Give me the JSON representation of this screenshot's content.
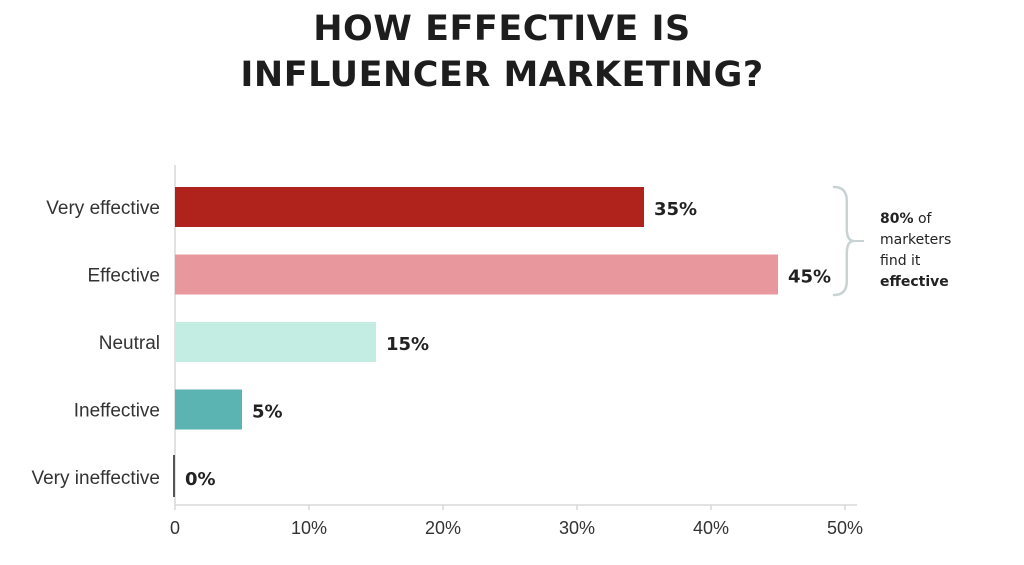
{
  "chart_data": {
    "type": "bar",
    "orientation": "horizontal",
    "title_lines": [
      "HOW EFFECTIVE IS",
      "INFLUENCER MARKETING?"
    ],
    "categories": [
      "Very effective",
      "Effective",
      "Neutral",
      "Ineffective",
      "Very ineffective"
    ],
    "values": [
      35,
      45,
      15,
      5,
      0
    ],
    "value_labels": [
      "35%",
      "45%",
      "15%",
      "5%",
      "0%"
    ],
    "colors": [
      "#b0221c",
      "#e8979c",
      "#c3ede3",
      "#5bb3b2",
      "#555555"
    ],
    "xlim": [
      0,
      50
    ],
    "xticks": [
      0,
      10,
      20,
      30,
      40,
      50
    ],
    "xtick_labels": [
      "0",
      "10%",
      "20%",
      "30%",
      "40%",
      "50%"
    ],
    "grid": false,
    "annotation": {
      "brackets": [
        "Very effective",
        "Effective"
      ],
      "highlight": "80%",
      "text_after_highlight": " of",
      "middle_lines": [
        "marketers",
        "find it"
      ],
      "bold_last": "effective"
    }
  }
}
